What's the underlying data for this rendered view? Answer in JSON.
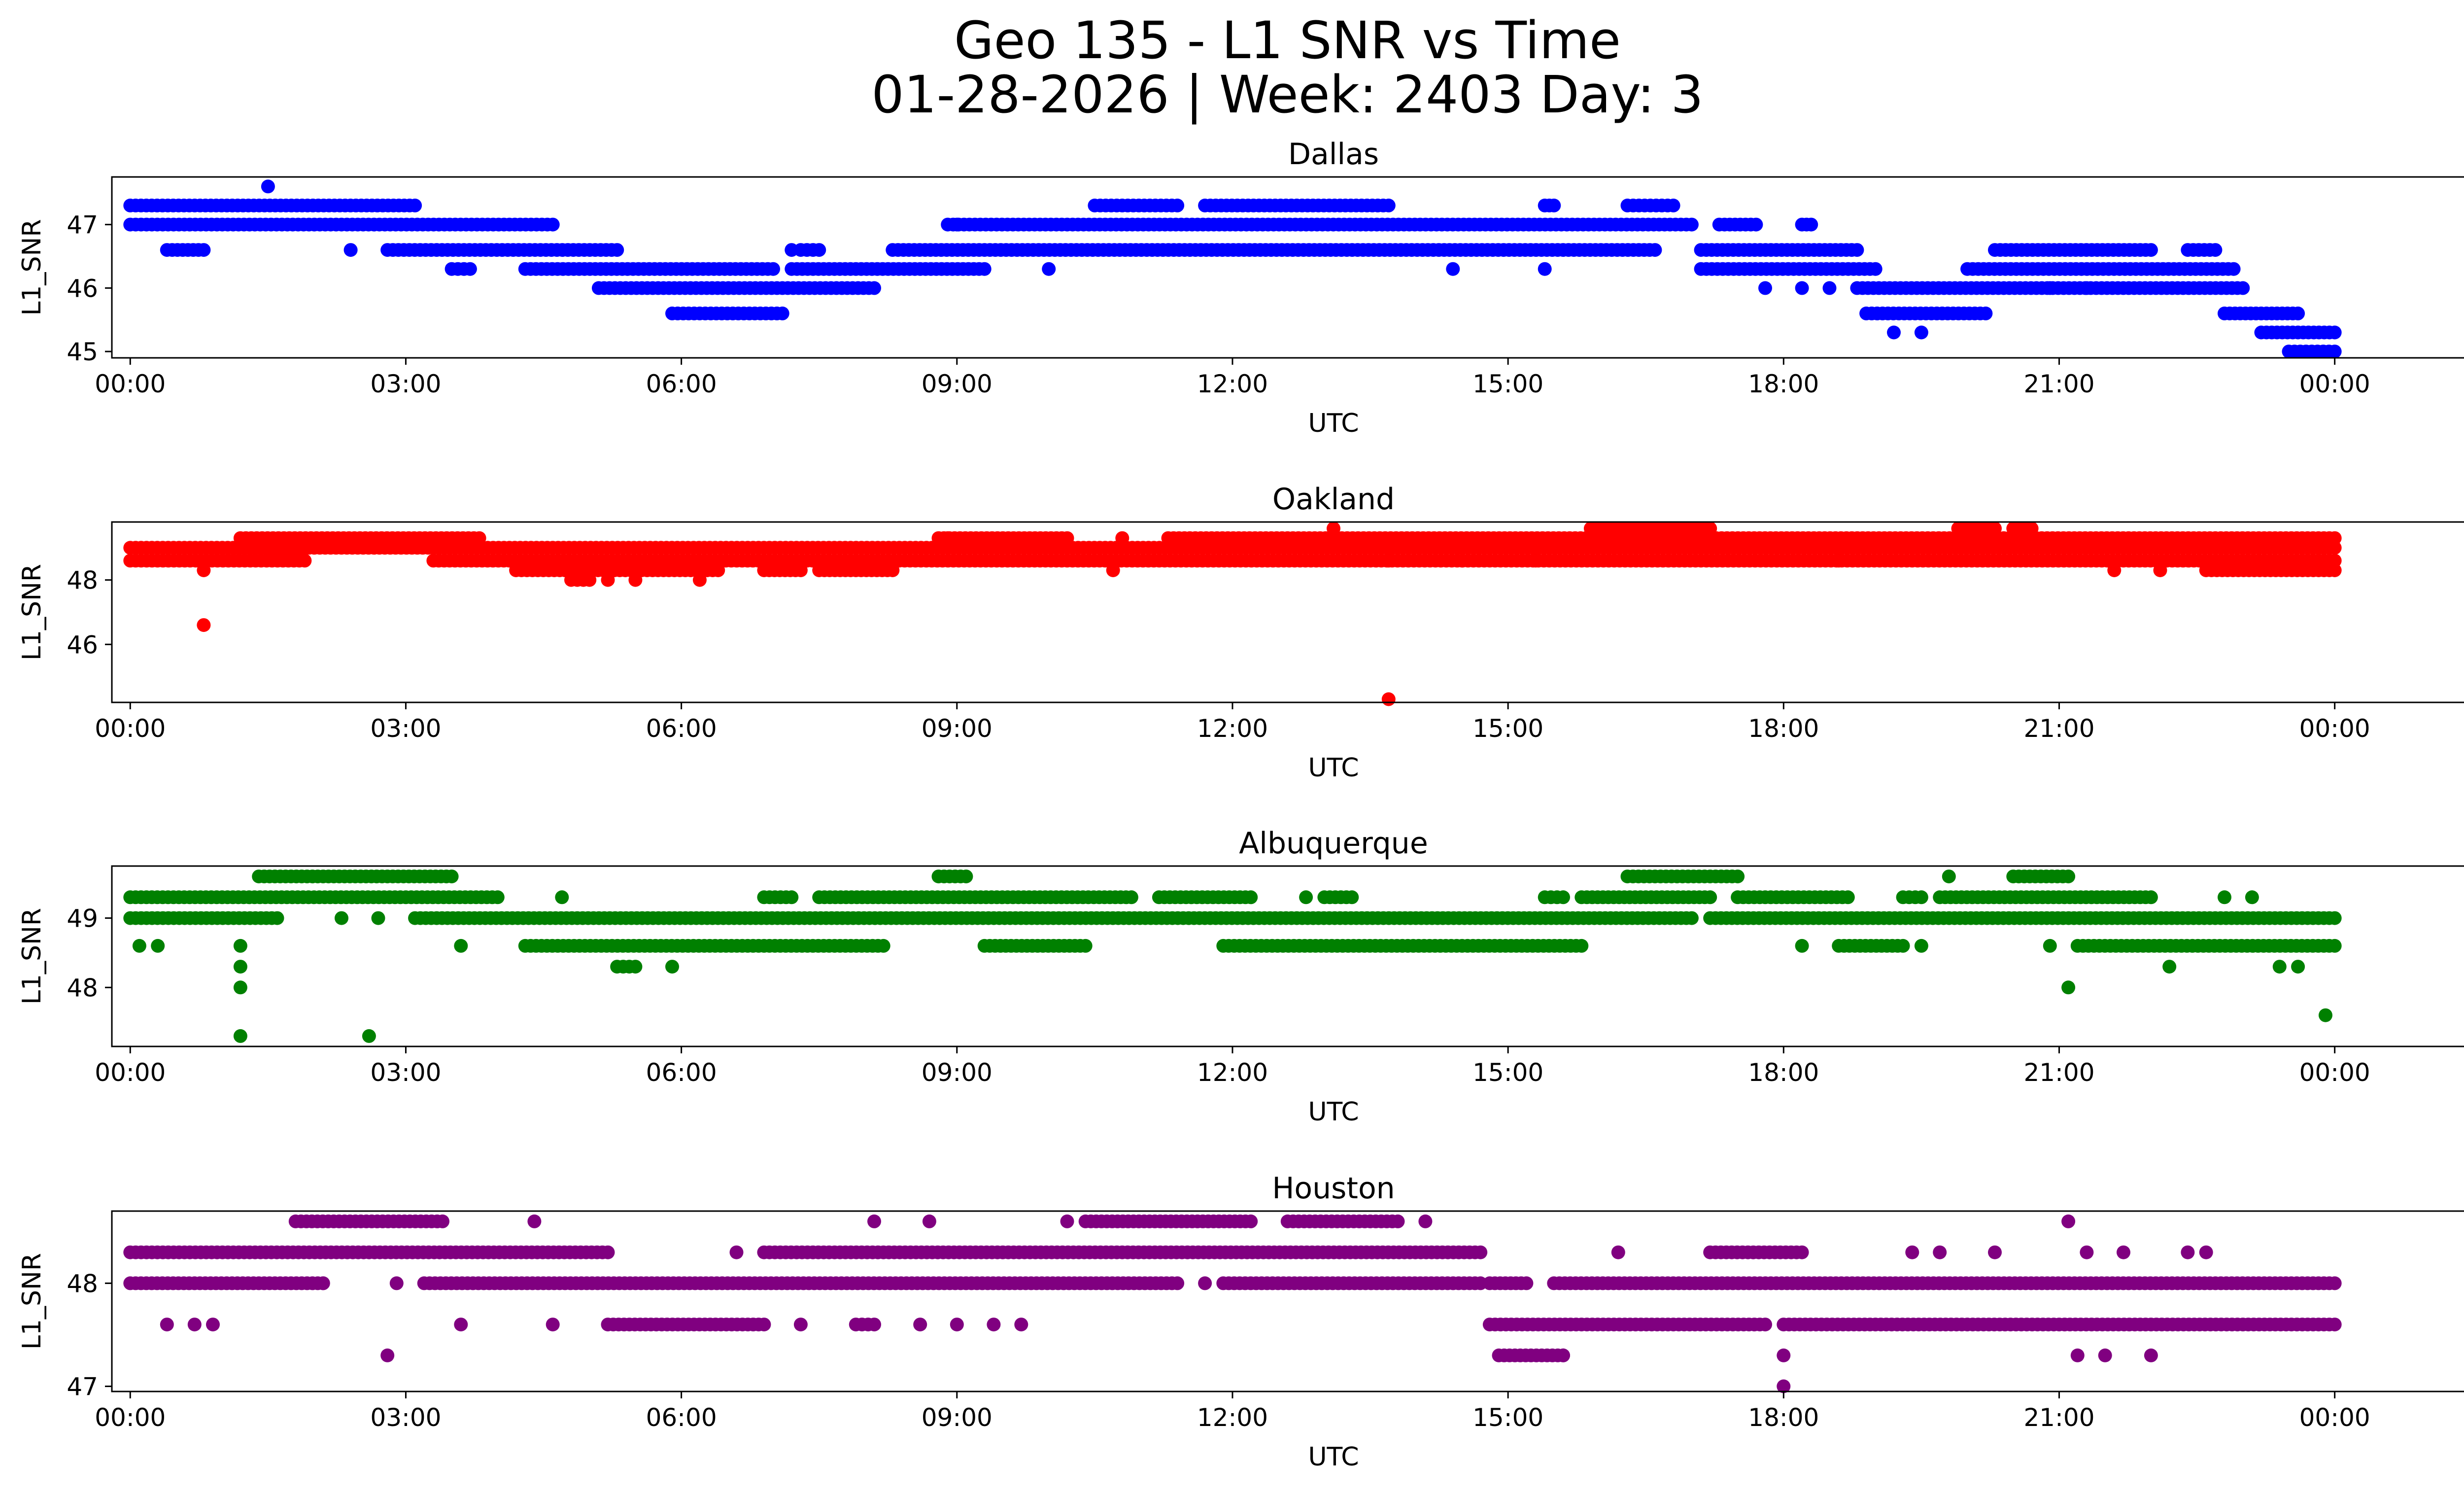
{
  "figure": {
    "title_line1": "Geo 135 - L1 SNR vs Time",
    "title_line2": "01-28-2026 | Week: 2403 Day: 3"
  },
  "chart_data": [
    {
      "type": "scatter",
      "title": "Dallas",
      "xlabel": "UTC",
      "ylabel": "L1_SNR",
      "color": "#0000ff",
      "xlim": [
        -0.2,
        26.4
      ],
      "ylim": [
        44.9,
        47.75
      ],
      "x_ticks": [
        0,
        3,
        6,
        9,
        12,
        15,
        18,
        21,
        24
      ],
      "x_tick_labels": [
        "00:00",
        "03:00",
        "06:00",
        "09:00",
        "12:00",
        "15:00",
        "18:00",
        "21:00",
        "00:00"
      ],
      "y_ticks": [
        45,
        46,
        47
      ],
      "y_tick_labels": [
        "45",
        "46",
        "47"
      ],
      "bands": [
        {
          "y": 47.3,
          "segments": [
            [
              0.0,
              3.1
            ],
            [
              10.5,
              11.4
            ],
            [
              11.7,
              13.7
            ],
            [
              15.4,
              15.5
            ],
            [
              16.3,
              16.8
            ]
          ]
        },
        {
          "y": 47.0,
          "segments": [
            [
              0.0,
              4.6
            ],
            [
              8.9,
              17.0
            ],
            [
              17.3,
              17.7
            ],
            [
              18.2,
              18.3
            ]
          ]
        },
        {
          "y": 46.6,
          "segments": [
            [
              0.4,
              0.8
            ],
            [
              2.8,
              5.3
            ],
            [
              7.3,
              7.5
            ],
            [
              8.3,
              16.6
            ],
            [
              17.1,
              18.8
            ],
            [
              20.3,
              22.0
            ],
            [
              22.4,
              22.7
            ]
          ]
        },
        {
          "y": 46.3,
          "segments": [
            [
              3.5,
              3.7
            ],
            [
              4.3,
              7.0
            ],
            [
              7.2,
              9.3
            ],
            [
              17.1,
              19.0
            ],
            [
              20.0,
              22.9
            ]
          ]
        },
        {
          "y": 46.0,
          "segments": [
            [
              5.1,
              8.1
            ],
            [
              18.8,
              23.0
            ]
          ]
        },
        {
          "y": 45.6,
          "segments": [
            [
              5.9,
              7.1
            ],
            [
              18.9,
              20.2
            ],
            [
              22.8,
              23.6
            ]
          ]
        },
        {
          "y": 45.3,
          "segments": [
            [
              23.2,
              24.0
            ]
          ]
        },
        {
          "y": 45.0,
          "segments": [
            [
              23.5,
              24.0
            ]
          ]
        }
      ],
      "points": [
        {
          "x": 1.5,
          "y": 47.6
        },
        {
          "x": 2.4,
          "y": 46.6
        },
        {
          "x": 7.2,
          "y": 46.6
        },
        {
          "x": 10.0,
          "y": 46.3
        },
        {
          "x": 14.4,
          "y": 46.3
        },
        {
          "x": 15.4,
          "y": 46.3
        },
        {
          "x": 17.8,
          "y": 46.0
        },
        {
          "x": 18.2,
          "y": 46.0
        },
        {
          "x": 18.5,
          "y": 46.0
        },
        {
          "x": 19.2,
          "y": 45.3
        },
        {
          "x": 19.5,
          "y": 45.3
        },
        {
          "x": 20.9,
          "y": 46.0
        },
        {
          "x": 21.3,
          "y": 46.0
        },
        {
          "x": 9.0,
          "y": 47.0
        }
      ]
    },
    {
      "type": "scatter",
      "title": "Oakland",
      "xlabel": "UTC",
      "ylabel": "L1_SNR",
      "color": "#ff0000",
      "xlim": [
        -0.2,
        26.4
      ],
      "ylim": [
        44.2,
        49.8
      ],
      "x_ticks": [
        0,
        3,
        6,
        9,
        12,
        15,
        18,
        21,
        24
      ],
      "x_tick_labels": [
        "00:00",
        "03:00",
        "06:00",
        "09:00",
        "12:00",
        "15:00",
        "18:00",
        "21:00",
        "00:00"
      ],
      "y_ticks": [
        46,
        48
      ],
      "y_tick_labels": [
        "46",
        "48"
      ],
      "bands": [
        {
          "y": 49.6,
          "segments": [
            [
              15.9,
              17.2
            ],
            [
              19.9,
              20.3
            ],
            [
              20.5,
              20.7
            ]
          ]
        },
        {
          "y": 49.3,
          "segments": [
            [
              1.2,
              3.8
            ],
            [
              8.8,
              10.2
            ],
            [
              11.3,
              24.0
            ]
          ]
        },
        {
          "y": 49.0,
          "segments": [
            [
              0.0,
              24.0
            ]
          ]
        },
        {
          "y": 48.6,
          "segments": [
            [
              0.0,
              1.9
            ],
            [
              3.3,
              24.0
            ]
          ]
        },
        {
          "y": 48.3,
          "segments": [
            [
              4.2,
              6.4
            ],
            [
              6.9,
              7.3
            ],
            [
              7.5,
              8.3
            ],
            [
              22.6,
              24.0
            ]
          ]
        },
        {
          "y": 48.0,
          "segments": [
            [
              4.8,
              5.0
            ]
          ]
        }
      ],
      "points": [
        {
          "x": 0.8,
          "y": 46.6
        },
        {
          "x": 13.7,
          "y": 44.3
        },
        {
          "x": 0.8,
          "y": 48.3
        },
        {
          "x": 5.2,
          "y": 48.0
        },
        {
          "x": 5.5,
          "y": 48.0
        },
        {
          "x": 6.2,
          "y": 48.0
        },
        {
          "x": 10.7,
          "y": 48.3
        },
        {
          "x": 13.1,
          "y": 49.6
        },
        {
          "x": 13.7,
          "y": 48.6
        },
        {
          "x": 14.5,
          "y": 48.6
        },
        {
          "x": 15.3,
          "y": 48.6
        },
        {
          "x": 18.6,
          "y": 48.6
        },
        {
          "x": 21.6,
          "y": 48.3
        },
        {
          "x": 22.1,
          "y": 48.3
        },
        {
          "x": 8.9,
          "y": 49.3
        },
        {
          "x": 10.8,
          "y": 49.3
        }
      ]
    },
    {
      "type": "scatter",
      "title": "Albuquerque",
      "xlabel": "UTC",
      "ylabel": "L1_SNR",
      "color": "#008000",
      "xlim": [
        -0.2,
        26.4
      ],
      "ylim": [
        47.15,
        49.75
      ],
      "x_ticks": [
        0,
        3,
        6,
        9,
        12,
        15,
        18,
        21,
        24
      ],
      "x_tick_labels": [
        "00:00",
        "03:00",
        "06:00",
        "09:00",
        "12:00",
        "15:00",
        "18:00",
        "21:00",
        "00:00"
      ],
      "y_ticks": [
        48,
        49
      ],
      "y_tick_labels": [
        "48",
        "49"
      ],
      "bands": [
        {
          "y": 49.6,
          "segments": [
            [
              1.4,
              3.5
            ],
            [
              8.8,
              9.1
            ],
            [
              16.3,
              17.5
            ],
            [
              20.5,
              21.1
            ]
          ]
        },
        {
          "y": 49.3,
          "segments": [
            [
              0.0,
              4.0
            ],
            [
              6.9,
              7.2
            ],
            [
              7.5,
              10.9
            ],
            [
              11.2,
              12.2
            ],
            [
              13.0,
              13.3
            ],
            [
              15.4,
              15.6
            ],
            [
              15.8,
              17.2
            ],
            [
              17.5,
              18.7
            ],
            [
              19.3,
              19.5
            ],
            [
              19.7,
              22.0
            ]
          ]
        },
        {
          "y": 49.0,
          "segments": [
            [
              0.0,
              1.6
            ],
            [
              3.1,
              17.0
            ],
            [
              17.2,
              24.0
            ]
          ]
        },
        {
          "y": 48.6,
          "segments": [
            [
              4.3,
              8.2
            ],
            [
              9.3,
              10.4
            ],
            [
              11.9,
              15.8
            ],
            [
              18.6,
              19.3
            ],
            [
              21.2,
              24.0
            ]
          ]
        },
        {
          "y": 48.3,
          "segments": [
            [
              5.3,
              5.5
            ]
          ]
        }
      ],
      "points": [
        {
          "x": 0.1,
          "y": 48.6
        },
        {
          "x": 0.3,
          "y": 48.6
        },
        {
          "x": 1.2,
          "y": 48.6
        },
        {
          "x": 1.2,
          "y": 48.3
        },
        {
          "x": 1.2,
          "y": 48.0
        },
        {
          "x": 1.2,
          "y": 47.3
        },
        {
          "x": 2.6,
          "y": 47.3
        },
        {
          "x": 5.9,
          "y": 48.3
        },
        {
          "x": 3.6,
          "y": 48.6
        },
        {
          "x": 21.1,
          "y": 48.0
        },
        {
          "x": 22.2,
          "y": 48.3
        },
        {
          "x": 23.4,
          "y": 48.3
        },
        {
          "x": 23.6,
          "y": 48.3
        },
        {
          "x": 23.9,
          "y": 47.6
        },
        {
          "x": 19.8,
          "y": 49.6
        },
        {
          "x": 22.8,
          "y": 49.3
        },
        {
          "x": 23.1,
          "y": 49.3
        },
        {
          "x": 20.9,
          "y": 48.6
        },
        {
          "x": 18.2,
          "y": 48.6
        },
        {
          "x": 19.5,
          "y": 48.6
        },
        {
          "x": 2.3,
          "y": 49.0
        },
        {
          "x": 2.7,
          "y": 49.0
        },
        {
          "x": 4.7,
          "y": 49.3
        },
        {
          "x": 12.8,
          "y": 49.3
        }
      ]
    },
    {
      "type": "scatter",
      "title": "Houston",
      "xlabel": "UTC",
      "ylabel": "L1_SNR",
      "color": "#800080",
      "xlim": [
        -0.2,
        26.4
      ],
      "ylim": [
        46.95,
        48.7
      ],
      "x_ticks": [
        0,
        3,
        6,
        9,
        12,
        15,
        18,
        21,
        24
      ],
      "x_tick_labels": [
        "00:00",
        "03:00",
        "06:00",
        "09:00",
        "12:00",
        "15:00",
        "18:00",
        "21:00",
        "00:00"
      ],
      "y_ticks": [
        47,
        48
      ],
      "y_tick_labels": [
        "47",
        "48"
      ],
      "bands": [
        {
          "y": 48.6,
          "segments": [
            [
              1.8,
              3.4
            ],
            [
              10.4,
              12.2
            ],
            [
              12.6,
              13.8
            ]
          ]
        },
        {
          "y": 48.3,
          "segments": [
            [
              0.0,
              5.2
            ],
            [
              6.9,
              14.7
            ],
            [
              17.2,
              18.2
            ]
          ]
        },
        {
          "y": 48.0,
          "segments": [
            [
              0.0,
              2.1
            ],
            [
              3.2,
              11.4
            ],
            [
              11.9,
              14.7
            ],
            [
              14.8,
              15.2
            ],
            [
              15.5,
              24.0
            ]
          ]
        },
        {
          "y": 47.6,
          "segments": [
            [
              5.2,
              6.9
            ],
            [
              7.9,
              8.1
            ],
            [
              14.8,
              17.8
            ],
            [
              18.0,
              24.0
            ]
          ]
        },
        {
          "y": 47.3,
          "segments": [
            [
              14.9,
              15.6
            ]
          ]
        }
      ],
      "points": [
        {
          "x": 0.4,
          "y": 47.6
        },
        {
          "x": 0.7,
          "y": 47.6
        },
        {
          "x": 0.9,
          "y": 47.6
        },
        {
          "x": 2.8,
          "y": 47.3
        },
        {
          "x": 2.9,
          "y": 48.0
        },
        {
          "x": 3.6,
          "y": 47.6
        },
        {
          "x": 4.4,
          "y": 48.6
        },
        {
          "x": 4.6,
          "y": 47.6
        },
        {
          "x": 6.6,
          "y": 48.3
        },
        {
          "x": 7.3,
          "y": 47.6
        },
        {
          "x": 8.1,
          "y": 48.6
        },
        {
          "x": 8.7,
          "y": 48.6
        },
        {
          "x": 8.6,
          "y": 47.6
        },
        {
          "x": 9.0,
          "y": 47.6
        },
        {
          "x": 9.7,
          "y": 47.6
        },
        {
          "x": 10.2,
          "y": 48.6
        },
        {
          "x": 11.7,
          "y": 48.0
        },
        {
          "x": 14.1,
          "y": 48.6
        },
        {
          "x": 15.6,
          "y": 47.3
        },
        {
          "x": 16.2,
          "y": 48.3
        },
        {
          "x": 18.0,
          "y": 47.3
        },
        {
          "x": 18.0,
          "y": 47.0
        },
        {
          "x": 19.4,
          "y": 48.3
        },
        {
          "x": 19.7,
          "y": 48.3
        },
        {
          "x": 20.3,
          "y": 48.3
        },
        {
          "x": 21.1,
          "y": 48.6
        },
        {
          "x": 21.2,
          "y": 47.3
        },
        {
          "x": 21.5,
          "y": 47.3
        },
        {
          "x": 21.3,
          "y": 48.3
        },
        {
          "x": 21.7,
          "y": 48.3
        },
        {
          "x": 22.0,
          "y": 47.3
        },
        {
          "x": 22.4,
          "y": 48.3
        },
        {
          "x": 22.6,
          "y": 48.3
        },
        {
          "x": 9.4,
          "y": 47.6
        },
        {
          "x": 2.1,
          "y": 48.0
        }
      ]
    }
  ]
}
